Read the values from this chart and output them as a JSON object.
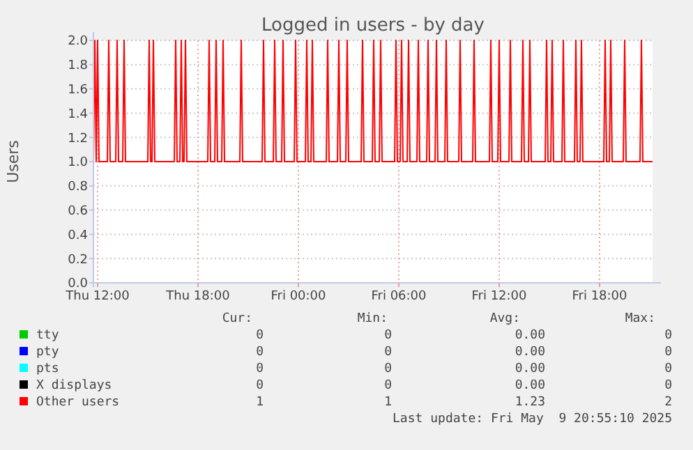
{
  "chart_data": {
    "type": "line",
    "title": "Logged in users - by day",
    "ylabel": "Users",
    "xlim": [
      "2025-05-08T11:45",
      "2025-05-09T21:10"
    ],
    "xticks": [
      {
        "value": "2025-05-08T12:00",
        "label": "Thu 12:00"
      },
      {
        "value": "2025-05-08T18:00",
        "label": "Thu 18:00"
      },
      {
        "value": "2025-05-09T00:00",
        "label": "Fri 00:00"
      },
      {
        "value": "2025-05-09T06:00",
        "label": "Fri 06:00"
      },
      {
        "value": "2025-05-09T12:00",
        "label": "Fri 12:00"
      },
      {
        "value": "2025-05-09T18:00",
        "label": "Fri 18:00"
      }
    ],
    "ylim": [
      0,
      2
    ],
    "yticks": [
      {
        "value": 0,
        "label": "0.0"
      },
      {
        "value": 0.2,
        "label": "0.2"
      },
      {
        "value": 0.4,
        "label": "0.4"
      },
      {
        "value": 0.6,
        "label": "0.6"
      },
      {
        "value": 0.8,
        "label": "0.8"
      },
      {
        "value": 1,
        "label": "1.0"
      },
      {
        "value": 1.2,
        "label": "1.2"
      },
      {
        "value": 1.4,
        "label": "1.4"
      },
      {
        "value": 1.6,
        "label": "1.6"
      },
      {
        "value": 1.8,
        "label": "1.8"
      },
      {
        "value": 2,
        "label": "2.0"
      }
    ],
    "grid": true,
    "legend": "bottom",
    "marker": "none",
    "line_style": "solid",
    "series": [
      {
        "name": "tty",
        "color": "#00cc00"
      },
      {
        "name": "pty",
        "color": "#0000ff"
      },
      {
        "name": "pts",
        "color": "#00ffff"
      },
      {
        "name": "X displays",
        "color": "#000000"
      },
      {
        "name": "Other users",
        "color": "#ff0000",
        "x": [
          "2025-05-08T11:45",
          "2025-05-08T11:50",
          "2025-05-08T11:55",
          "2025-05-08T12:00",
          "2025-05-08T12:05",
          "2025-05-08T12:35",
          "2025-05-08T12:40",
          "2025-05-08T12:45",
          "2025-05-08T13:05",
          "2025-05-08T13:10",
          "2025-05-08T13:15",
          "2025-05-08T13:30",
          "2025-05-08T13:35",
          "2025-05-08T13:40",
          "2025-05-08T15:00",
          "2025-05-08T15:05",
          "2025-05-08T15:10",
          "2025-05-08T15:15",
          "2025-05-08T15:20",
          "2025-05-08T15:25",
          "2025-05-08T16:35",
          "2025-05-08T16:40",
          "2025-05-08T16:45",
          "2025-05-08T16:55",
          "2025-05-08T17:00",
          "2025-05-08T17:05",
          "2025-05-08T17:10",
          "2025-05-08T17:15",
          "2025-05-08T17:20",
          "2025-05-08T18:35",
          "2025-05-08T18:40",
          "2025-05-08T18:45",
          "2025-05-08T19:00",
          "2025-05-08T19:05",
          "2025-05-08T19:10",
          "2025-05-08T19:25",
          "2025-05-08T19:30",
          "2025-05-08T19:35",
          "2025-05-08T20:30",
          "2025-05-08T20:35",
          "2025-05-08T20:40",
          "2025-05-08T21:50",
          "2025-05-08T21:55",
          "2025-05-08T22:00",
          "2025-05-08T22:30",
          "2025-05-08T22:35",
          "2025-05-08T22:40",
          "2025-05-08T23:00",
          "2025-05-08T23:05",
          "2025-05-08T23:10",
          "2025-05-08T23:45",
          "2025-05-08T23:50",
          "2025-05-08T23:55",
          "2025-05-09T00:25",
          "2025-05-09T00:30",
          "2025-05-09T00:35",
          "2025-05-09T00:45",
          "2025-05-09T00:50",
          "2025-05-09T00:55",
          "2025-05-09T01:40",
          "2025-05-09T01:45",
          "2025-05-09T01:50",
          "2025-05-09T02:20",
          "2025-05-09T02:25",
          "2025-05-09T02:30",
          "2025-05-09T02:50",
          "2025-05-09T02:55",
          "2025-05-09T03:00",
          "2025-05-09T03:45",
          "2025-05-09T03:50",
          "2025-05-09T03:55",
          "2025-05-09T04:25",
          "2025-05-09T04:30",
          "2025-05-09T04:35",
          "2025-05-09T04:50",
          "2025-05-09T04:55",
          "2025-05-09T05:00",
          "2025-05-09T05:45",
          "2025-05-09T05:50",
          "2025-05-09T05:55",
          "2025-05-09T06:05",
          "2025-05-09T06:10",
          "2025-05-09T06:15",
          "2025-05-09T06:30",
          "2025-05-09T06:35",
          "2025-05-09T06:40",
          "2025-05-09T07:05",
          "2025-05-09T07:10",
          "2025-05-09T07:15",
          "2025-05-09T07:40",
          "2025-05-09T07:45",
          "2025-05-09T07:50",
          "2025-05-09T08:10",
          "2025-05-09T08:15",
          "2025-05-09T08:20",
          "2025-05-09T08:45",
          "2025-05-09T08:50",
          "2025-05-09T08:55",
          "2025-05-09T09:35",
          "2025-05-09T09:40",
          "2025-05-09T09:45",
          "2025-05-09T10:25",
          "2025-05-09T10:30",
          "2025-05-09T10:35",
          "2025-05-09T11:25",
          "2025-05-09T11:30",
          "2025-05-09T11:35",
          "2025-05-09T11:55",
          "2025-05-09T12:00",
          "2025-05-09T12:05",
          "2025-05-09T12:35",
          "2025-05-09T12:40",
          "2025-05-09T12:45",
          "2025-05-09T13:20",
          "2025-05-09T13:25",
          "2025-05-09T13:30",
          "2025-05-09T13:45",
          "2025-05-09T13:50",
          "2025-05-09T13:55",
          "2025-05-09T14:45",
          "2025-05-09T14:50",
          "2025-05-09T14:55",
          "2025-05-09T15:05",
          "2025-05-09T15:10",
          "2025-05-09T15:15",
          "2025-05-09T15:45",
          "2025-05-09T15:50",
          "2025-05-09T15:55",
          "2025-05-09T16:30",
          "2025-05-09T16:35",
          "2025-05-09T16:40",
          "2025-05-09T16:50",
          "2025-05-09T16:55",
          "2025-05-09T17:00",
          "2025-05-09T18:15",
          "2025-05-09T18:20",
          "2025-05-09T18:25",
          "2025-05-09T18:35",
          "2025-05-09T18:40",
          "2025-05-09T18:45",
          "2025-05-09T19:25",
          "2025-05-09T19:30",
          "2025-05-09T19:35",
          "2025-05-09T20:25",
          "2025-05-09T20:30",
          "2025-05-09T20:35",
          "2025-05-09T21:10"
        ],
        "values": [
          1,
          2,
          1,
          2,
          1,
          1,
          2,
          1,
          1,
          2,
          1,
          1,
          2,
          1,
          1,
          2,
          1,
          1,
          2,
          1,
          1,
          2,
          1,
          1,
          2,
          1,
          1,
          2,
          1,
          1,
          2,
          1,
          1,
          2,
          1,
          1,
          2,
          1,
          1,
          2,
          1,
          1,
          2,
          1,
          1,
          2,
          1,
          1,
          2,
          1,
          1,
          2,
          1,
          1,
          2,
          1,
          1,
          2,
          1,
          1,
          2,
          1,
          1,
          2,
          1,
          1,
          2,
          1,
          1,
          2,
          1,
          1,
          2,
          1,
          1,
          2,
          1,
          1,
          2,
          1,
          1,
          2,
          1,
          1,
          2,
          1,
          1,
          2,
          1,
          1,
          2,
          1,
          1,
          2,
          1,
          1,
          2,
          1,
          1,
          2,
          1,
          1,
          2,
          1,
          1,
          2,
          1,
          1,
          2,
          1,
          1,
          2,
          1,
          1,
          2,
          1,
          1,
          2,
          1,
          1,
          2,
          1,
          1,
          2,
          1,
          1,
          2,
          1,
          1,
          2,
          1,
          1,
          2,
          1,
          1,
          2,
          1,
          1,
          2,
          1,
          1,
          2,
          1,
          1,
          2,
          1,
          1
        ]
      }
    ],
    "annotations": [
      "Cur:",
      "Min:",
      "Avg:",
      "Max:",
      "0",
      "0",
      "0.00",
      "0",
      "0",
      "0",
      "0.00",
      "0",
      "0",
      "0",
      "0.00",
      "0",
      "0",
      "0",
      "0.00",
      "0",
      "1",
      "1",
      "1.23",
      "2",
      "Last update: Fri May  9 20:55:10 2025"
    ]
  }
}
